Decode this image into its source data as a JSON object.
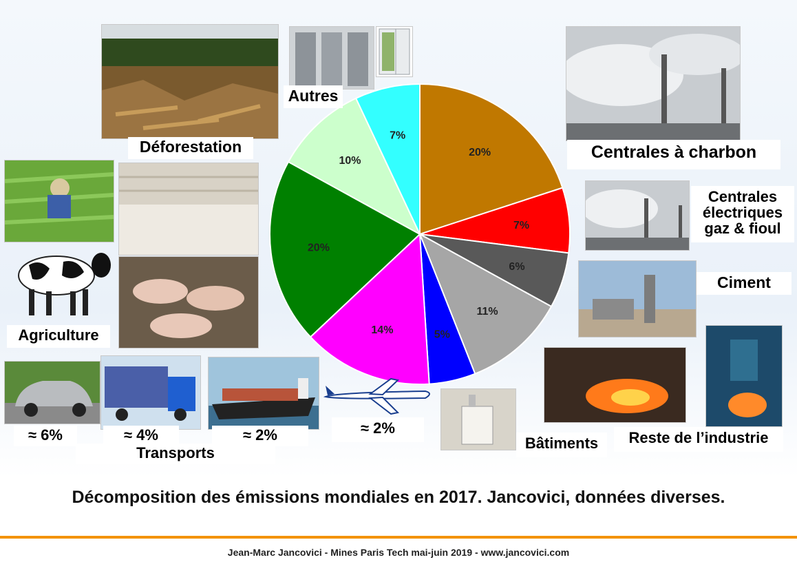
{
  "chart_data": {
    "type": "pie",
    "title": "",
    "slices": [
      {
        "label": "Centrales à charbon",
        "value": 20,
        "display": "20%",
        "color": "#c07800"
      },
      {
        "label": "Centrales électriques gaz & fioul",
        "value": 7,
        "display": "7%",
        "color": "#ff0000"
      },
      {
        "label": "Ciment",
        "value": 6,
        "display": "6%",
        "color": "#595959"
      },
      {
        "label": "Reste de l’industrie",
        "value": 11,
        "display": "11%",
        "color": "#a6a6a6"
      },
      {
        "label": "Bâtiments",
        "value": 5,
        "display": "5%",
        "color": "#0000ff"
      },
      {
        "label": "Transports",
        "value": 14,
        "display": "14%",
        "color": "#ff00ff"
      },
      {
        "label": "Agriculture",
        "value": 20,
        "display": "20%",
        "color": "#008000"
      },
      {
        "label": "Déforestation",
        "value": 10,
        "display": "10%",
        "color": "#ccffcc"
      },
      {
        "label": "Autres",
        "value": 7,
        "display": "7%",
        "color": "#33ffff"
      }
    ]
  },
  "labels": {
    "deforestation": "Déforestation",
    "autres": "Autres",
    "charbon": "Centrales à charbon",
    "gaz_line1": "Centrales",
    "gaz_line2": "électriques",
    "gaz_line3": "gaz & fioul",
    "ciment": "Ciment",
    "agriculture": "Agriculture",
    "car": "≈ 6%",
    "truck": "≈ 4%",
    "ship": "≈ 2%",
    "plane": "≈ 2%",
    "transports": "Transports",
    "batiments": "Bâtiments",
    "industrie": "Reste de l’industrie"
  },
  "caption": "Décomposition des émissions mondiales en 2017. Jancovici, données diverses.",
  "footer": "Jean-Marc Jancovici - Mines Paris Tech mai-juin 2019 - www.jancovici.com",
  "colors": {
    "accent": "#f39200"
  }
}
